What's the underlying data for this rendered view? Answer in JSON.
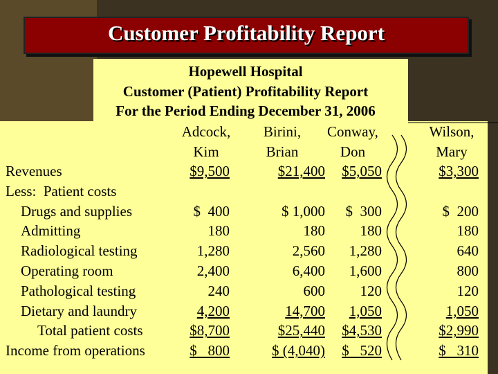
{
  "title": "Customer Profitability Report",
  "report": {
    "heading": [
      "Hopewell Hospital",
      "Customer (Patient) Profitability Report",
      "For the Period Ending December 31, 2006"
    ],
    "columns": [
      [
        "Adcock,",
        "Kim"
      ],
      [
        "Birini,",
        "Brian"
      ],
      [
        "Conway,",
        "Don"
      ],
      [
        "Wilson,",
        "Mary"
      ]
    ],
    "rows": [
      {
        "label": "Revenues",
        "cells": [
          "$9,500",
          "$21,400",
          "$5,050",
          "$3,300"
        ]
      },
      {
        "label": "Less:  Patient costs",
        "cells": []
      },
      {
        "label": "Drugs and supplies",
        "cells": [
          "$  400",
          "$ 1,000",
          "$  300",
          "$  200"
        ]
      },
      {
        "label": "Admitting",
        "cells": [
          "180",
          "180",
          "180",
          "180"
        ]
      },
      {
        "label": "Radiological testing",
        "cells": [
          "1,280",
          "2,560",
          "1,280",
          "640"
        ]
      },
      {
        "label": "Operating room",
        "cells": [
          "2,400",
          "6,400",
          "1,600",
          "800"
        ]
      },
      {
        "label": "Pathological testing",
        "cells": [
          "240",
          "600",
          "120",
          "120"
        ]
      },
      {
        "label": "Dietary and laundry",
        "cells": [
          "4,200",
          "14,700",
          "1,050",
          "1,050"
        ]
      },
      {
        "label": "Total patient costs",
        "cells": [
          "$8,700",
          "$25,440",
          "$4,530",
          "$2,990"
        ]
      },
      {
        "label": "Income from operations",
        "cells": [
          "$   800",
          "$ (4,040)",
          "$   520",
          "$   310"
        ]
      }
    ]
  }
}
